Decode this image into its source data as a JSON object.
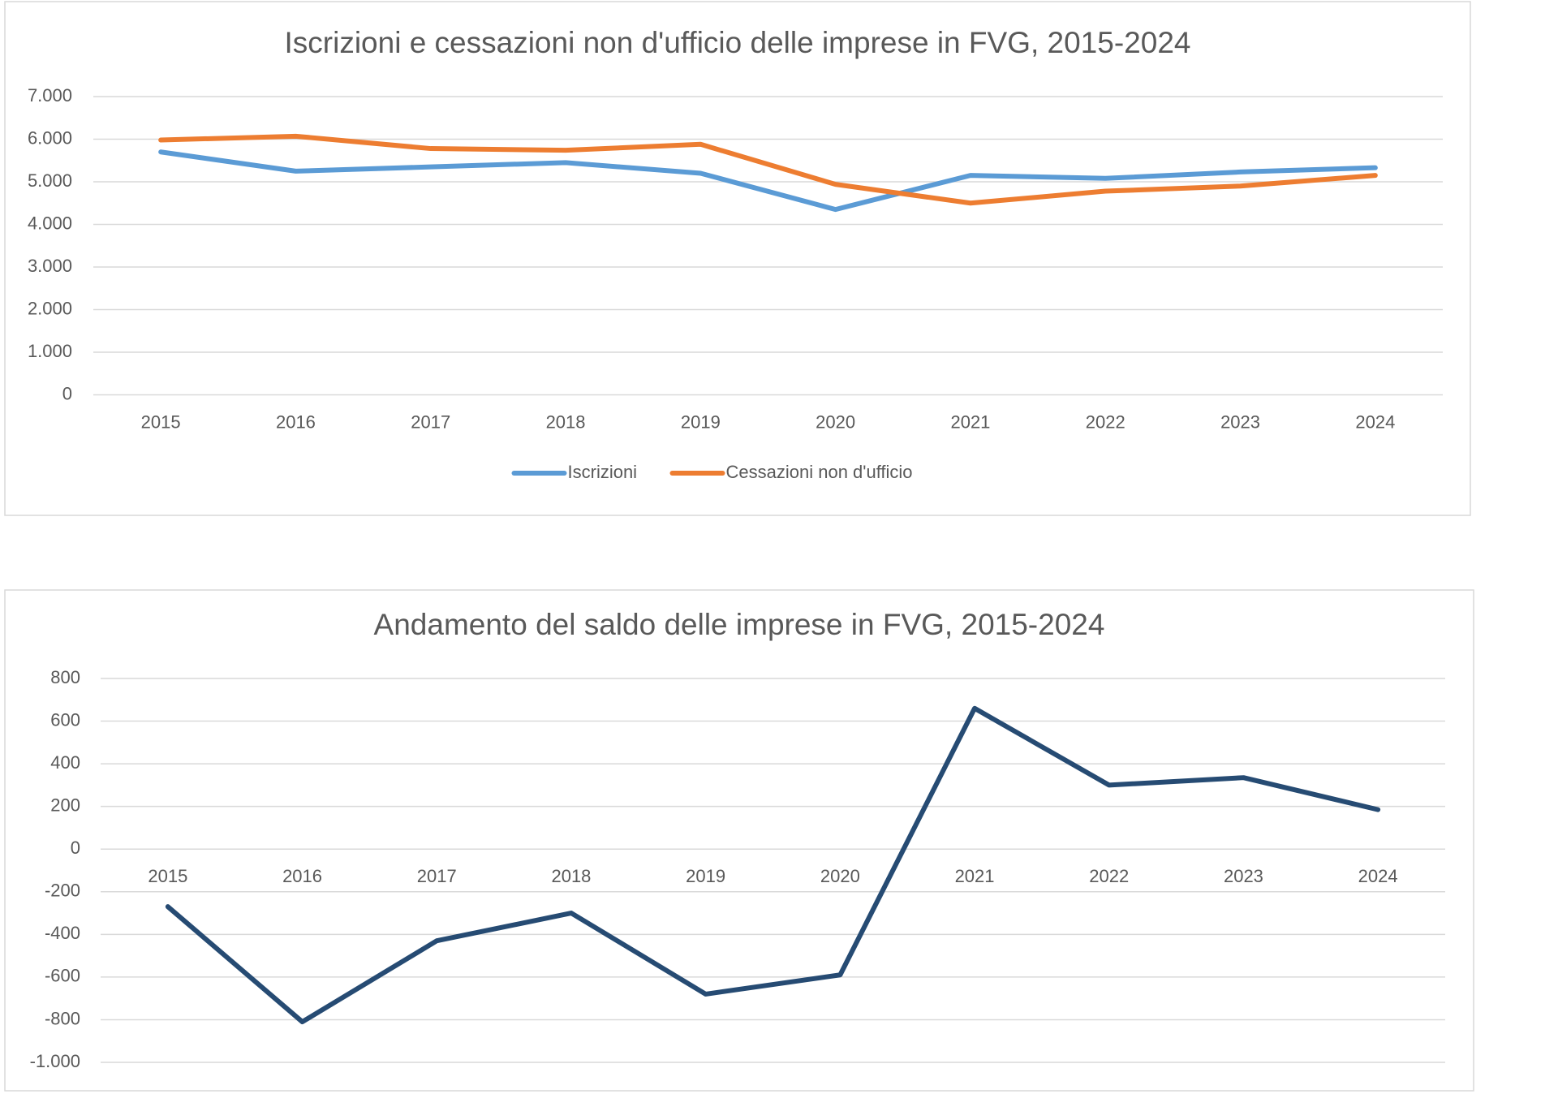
{
  "chart_data": [
    {
      "type": "line",
      "title": "Iscrizioni e cessazioni non d'ufficio delle imprese in FVG, 2015-2024",
      "categories": [
        "2015",
        "2016",
        "2017",
        "2018",
        "2019",
        "2020",
        "2021",
        "2022",
        "2023",
        "2024"
      ],
      "series": [
        {
          "name": "Iscrizioni",
          "color": "#5b9bd5",
          "values": [
            5700,
            5250,
            5350,
            5450,
            5200,
            4350,
            5150,
            5080,
            5230,
            5330
          ]
        },
        {
          "name": "Cessazioni non d'ufficio",
          "color": "#ed7d31",
          "values": [
            5980,
            6070,
            5780,
            5740,
            5880,
            4940,
            4500,
            4780,
            4900,
            5150
          ]
        }
      ],
      "ylim": [
        0,
        7000
      ],
      "yticks": [
        0,
        {
          "value": 1000,
          "label": "1.000"
        },
        {
          "value": 2000,
          "label": "2.000"
        },
        {
          "value": 3000,
          "label": "3.000"
        },
        {
          "value": 4000,
          "label": "4.000"
        },
        {
          "value": 5000,
          "label": "5.000"
        },
        {
          "value": 6000,
          "label": "6.000"
        },
        {
          "value": 7000,
          "label": "7.000"
        }
      ],
      "grid": true,
      "legend": "bottom"
    },
    {
      "type": "line",
      "title": "Andamento del saldo delle imprese in FVG, 2015-2024",
      "categories": [
        "2015",
        "2016",
        "2017",
        "2018",
        "2019",
        "2020",
        "2021",
        "2022",
        "2023",
        "2024"
      ],
      "series": [
        {
          "color": "#264b73",
          "values": [
            -270,
            -810,
            -430,
            -300,
            -680,
            -590,
            660,
            300,
            335,
            185
          ]
        }
      ],
      "ylim": [
        -1000,
        800
      ],
      "yticks": [
        {
          "value": -1000,
          "label": "-1.000"
        },
        -800,
        -600,
        -400,
        -200,
        0,
        200,
        400,
        600,
        800
      ],
      "grid": true
    }
  ]
}
